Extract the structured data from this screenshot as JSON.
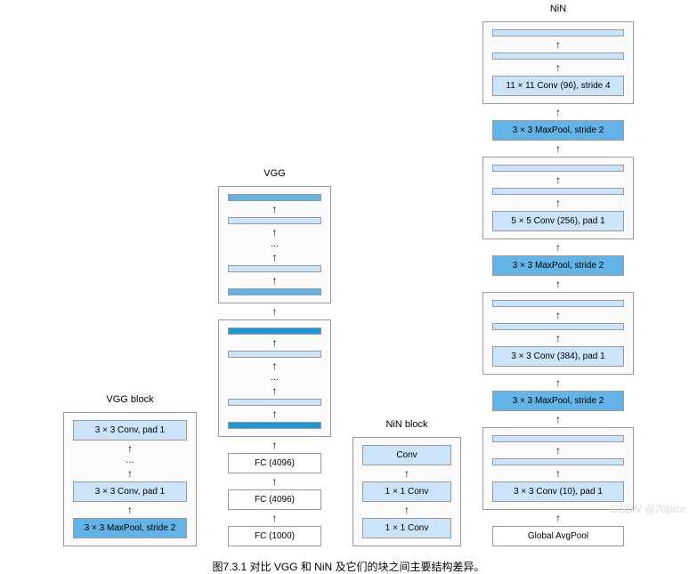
{
  "caption": "图7.3.1 对比 VGG 和 NiN 及它们的块之间主要结构差异。",
  "watermark": "CSDN @70pice",
  "colors": {
    "light_blue": "#cbe4f9",
    "mid_blue": "#63b3e6",
    "dark_blue": "#2196d6",
    "white": "#ffffff",
    "border": "#9a9a9a"
  },
  "columns": [
    {
      "title": "VGG block",
      "width_class": "w-vggblock",
      "stacks": [
        {
          "items": [
            {
              "type": "layer",
              "text": "3 × 3 Conv, pad 1",
              "fill": "light_blue"
            },
            {
              "type": "arrow"
            },
            {
              "type": "dots"
            },
            {
              "type": "arrow"
            },
            {
              "type": "layer",
              "text": "3 × 3 Conv, pad 1",
              "fill": "light_blue"
            },
            {
              "type": "arrow"
            },
            {
              "type": "layer",
              "text": "3 × 3 MaxPool, stride 2",
              "fill": "mid_blue"
            }
          ]
        }
      ]
    },
    {
      "title": "VGG",
      "width_class": "w-vgg",
      "stacks": [
        {
          "items": [
            {
              "type": "bar",
              "fill": "mid_blue"
            },
            {
              "type": "arrow"
            },
            {
              "type": "bar",
              "fill": "light_blue"
            },
            {
              "type": "arrow"
            },
            {
              "type": "dots"
            },
            {
              "type": "arrow"
            },
            {
              "type": "bar",
              "fill": "light_blue"
            },
            {
              "type": "arrow"
            },
            {
              "type": "bar",
              "fill": "mid_blue"
            }
          ]
        },
        {
          "arrow_between": true
        },
        {
          "items": [
            {
              "type": "bar",
              "fill": "dark_blue"
            },
            {
              "type": "arrow"
            },
            {
              "type": "bar",
              "fill": "light_blue"
            },
            {
              "type": "arrow"
            },
            {
              "type": "dots"
            },
            {
              "type": "arrow"
            },
            {
              "type": "bar",
              "fill": "light_blue"
            },
            {
              "type": "arrow"
            },
            {
              "type": "bar",
              "fill": "dark_blue"
            }
          ]
        },
        {
          "arrow_between": true
        },
        {
          "plain_items": [
            {
              "type": "layer",
              "text": "FC (4096)",
              "fill": "white"
            },
            {
              "type": "arrow"
            },
            {
              "type": "layer",
              "text": "FC (4096)",
              "fill": "white"
            },
            {
              "type": "arrow"
            },
            {
              "type": "layer",
              "text": "FC (1000)",
              "fill": "white"
            }
          ]
        }
      ]
    },
    {
      "title": "NiN block",
      "width_class": "w-ninblock",
      "stacks": [
        {
          "items": [
            {
              "type": "layer",
              "text": "Conv",
              "fill": "light_blue"
            },
            {
              "type": "arrow"
            },
            {
              "type": "layer",
              "text": "1 × 1 Conv",
              "fill": "light_blue"
            },
            {
              "type": "arrow"
            },
            {
              "type": "layer",
              "text": "1 × 1 Conv",
              "fill": "light_blue"
            }
          ]
        }
      ]
    },
    {
      "title": "NiN",
      "width_class": "w-nin",
      "stacks": [
        {
          "items": [
            {
              "type": "bar",
              "fill": "light_blue"
            },
            {
              "type": "arrow"
            },
            {
              "type": "bar",
              "fill": "light_blue"
            },
            {
              "type": "arrow"
            },
            {
              "type": "layer",
              "text": "11 × 11 Conv (96), stride 4",
              "fill": "light_blue"
            }
          ]
        },
        {
          "arrow_between": true
        },
        {
          "plain_items": [
            {
              "type": "layer",
              "text": "3 × 3 MaxPool, stride 2",
              "fill": "mid_blue"
            }
          ]
        },
        {
          "arrow_between": true
        },
        {
          "items": [
            {
              "type": "bar",
              "fill": "light_blue"
            },
            {
              "type": "arrow"
            },
            {
              "type": "bar",
              "fill": "light_blue"
            },
            {
              "type": "arrow"
            },
            {
              "type": "layer",
              "text": "5 × 5 Conv (256), pad 1",
              "fill": "light_blue"
            }
          ]
        },
        {
          "arrow_between": true
        },
        {
          "plain_items": [
            {
              "type": "layer",
              "text": "3 × 3 MaxPool, stride 2",
              "fill": "mid_blue"
            }
          ]
        },
        {
          "arrow_between": true
        },
        {
          "items": [
            {
              "type": "bar",
              "fill": "light_blue"
            },
            {
              "type": "arrow"
            },
            {
              "type": "bar",
              "fill": "light_blue"
            },
            {
              "type": "arrow"
            },
            {
              "type": "layer",
              "text": "3 × 3 Conv (384), pad 1",
              "fill": "light_blue"
            }
          ]
        },
        {
          "arrow_between": true
        },
        {
          "plain_items": [
            {
              "type": "layer",
              "text": "3 × 3 MaxPool, stride 2",
              "fill": "mid_blue"
            }
          ]
        },
        {
          "arrow_between": true
        },
        {
          "items": [
            {
              "type": "bar",
              "fill": "light_blue"
            },
            {
              "type": "arrow"
            },
            {
              "type": "bar",
              "fill": "light_blue"
            },
            {
              "type": "arrow"
            },
            {
              "type": "layer",
              "text": "3 × 3 Conv (10), pad 1",
              "fill": "light_blue"
            }
          ]
        },
        {
          "arrow_between": true
        },
        {
          "plain_items": [
            {
              "type": "layer",
              "text": "Global AvgPool",
              "fill": "white"
            }
          ]
        }
      ]
    }
  ]
}
